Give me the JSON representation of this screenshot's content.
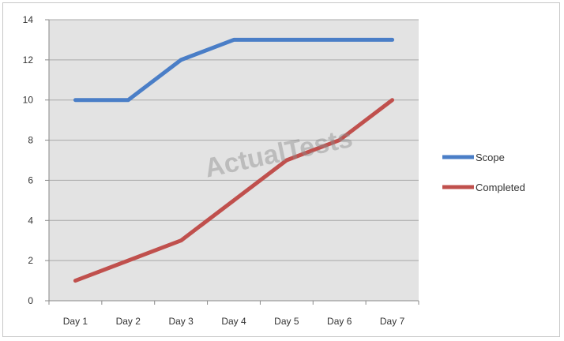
{
  "chart_data": {
    "type": "line",
    "categories": [
      "Day 1",
      "Day 2",
      "Day 3",
      "Day 4",
      "Day 5",
      "Day 6",
      "Day 7"
    ],
    "series": [
      {
        "name": "Scope",
        "color": "#4a7ec7",
        "values": [
          10,
          10,
          12,
          13,
          13,
          13,
          13
        ]
      },
      {
        "name": "Completed",
        "color": "#c0504d",
        "values": [
          1,
          2,
          3,
          5,
          7,
          8,
          10
        ]
      }
    ],
    "ylim": [
      0,
      14
    ],
    "yticks": [
      "0",
      "2",
      "4",
      "6",
      "8",
      "10",
      "12",
      "14"
    ],
    "grid": true,
    "plot_background": "#e3e3e3",
    "legend_position": "right"
  },
  "watermark": "ActualTests"
}
